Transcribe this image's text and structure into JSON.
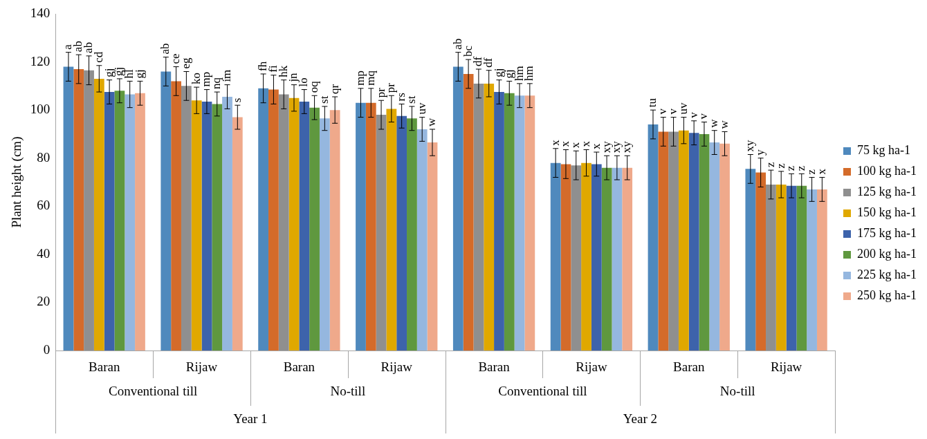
{
  "chart_data": {
    "type": "bar",
    "ylabel": "Plant height (cm)",
    "categories": [
      "Baran",
      "Rijaw",
      "Baran",
      "Rijaw",
      "Baran",
      "Rijaw",
      "Baran",
      "Rijaw"
    ],
    "annotations": [
      "Conventional till",
      "No-till",
      "Conventional till",
      "No-till",
      "Year 1",
      "Year 2"
    ],
    "ylim": [
      0,
      140
    ],
    "yticks": [
      0,
      20,
      40,
      60,
      80,
      100,
      120,
      140
    ],
    "grid": false,
    "legend": "right",
    "series": [
      {
        "name": "75 kg ha-1",
        "color": "#4f89bd",
        "values": [
          118,
          116,
          109,
          103,
          118,
          78,
          94,
          75.5
        ],
        "errors": [
          6,
          6,
          6,
          6,
          6,
          6,
          6,
          6
        ],
        "value_labels": [
          "a",
          "ab",
          "fh",
          "mp",
          "ab",
          "x",
          "tu",
          "xy"
        ]
      },
      {
        "name": "100 kg ha-1",
        "color": "#d46b2a",
        "values": [
          117,
          112,
          108.5,
          103,
          115,
          77.5,
          91,
          74
        ],
        "errors": [
          6,
          6,
          6,
          6,
          6,
          6,
          6,
          6
        ],
        "value_labels": [
          "ab",
          "ce",
          "fi",
          "mq",
          "bc",
          "x",
          "v",
          "y"
        ]
      },
      {
        "name": "125 kg ha-1",
        "color": "#8f8f8f",
        "values": [
          116.5,
          110,
          106.5,
          98,
          111,
          77,
          91,
          69
        ],
        "errors": [
          6,
          6,
          6,
          6,
          6,
          6,
          6,
          6
        ],
        "value_labels": [
          "ab",
          "eg",
          "hk",
          "pr",
          "df",
          "x",
          "v",
          "z"
        ]
      },
      {
        "name": "150 kg ha-1",
        "color": "#e0a800",
        "values": [
          113,
          104,
          105,
          100.5,
          111,
          78,
          91.5,
          69
        ],
        "errors": [
          5.5,
          5.5,
          5.5,
          5.5,
          5.5,
          5.5,
          5.5,
          5.5
        ],
        "value_labels": [
          "cd",
          "ko",
          "jn",
          "pr",
          "df",
          "x",
          "uv",
          "z"
        ]
      },
      {
        "name": "175 kg ha-1",
        "color": "#3d63ab",
        "values": [
          107.5,
          103.5,
          103.5,
          97.5,
          107.5,
          77.5,
          90.5,
          68.5
        ],
        "errors": [
          5,
          5,
          5,
          5,
          5,
          5,
          5,
          5
        ],
        "value_labels": [
          "gj",
          "mp",
          "lo",
          "rs",
          "gj",
          "x",
          "v",
          "z"
        ]
      },
      {
        "name": "200 kg ha-1",
        "color": "#5f983f",
        "values": [
          108,
          102.5,
          101,
          96.5,
          107,
          76,
          90,
          68.5
        ],
        "errors": [
          5,
          5,
          5,
          5,
          5,
          5,
          5,
          5
        ],
        "value_labels": [
          "gj",
          "nq",
          "oq",
          "st",
          "gj",
          "xy",
          "v",
          "z"
        ]
      },
      {
        "name": "225 kg ha-1",
        "color": "#95b7df",
        "values": [
          106.5,
          105.5,
          96.5,
          92,
          106,
          76,
          86.5,
          67
        ],
        "errors": [
          5.5,
          5,
          5,
          5,
          5,
          5,
          5,
          5
        ],
        "value_labels": [
          "hl",
          "im",
          "st",
          "uv",
          "hm",
          "xy",
          "w",
          "z"
        ]
      },
      {
        "name": "250 kg ha-1",
        "color": "#efa98b",
        "values": [
          107,
          97,
          100,
          86.5,
          106,
          76,
          86,
          67
        ],
        "errors": [
          5,
          5,
          5.5,
          5.5,
          5,
          5,
          5,
          5
        ],
        "value_labels": [
          "gj",
          "s",
          "qr",
          "w",
          "hm",
          "xy",
          "w",
          "x"
        ]
      }
    ]
  }
}
